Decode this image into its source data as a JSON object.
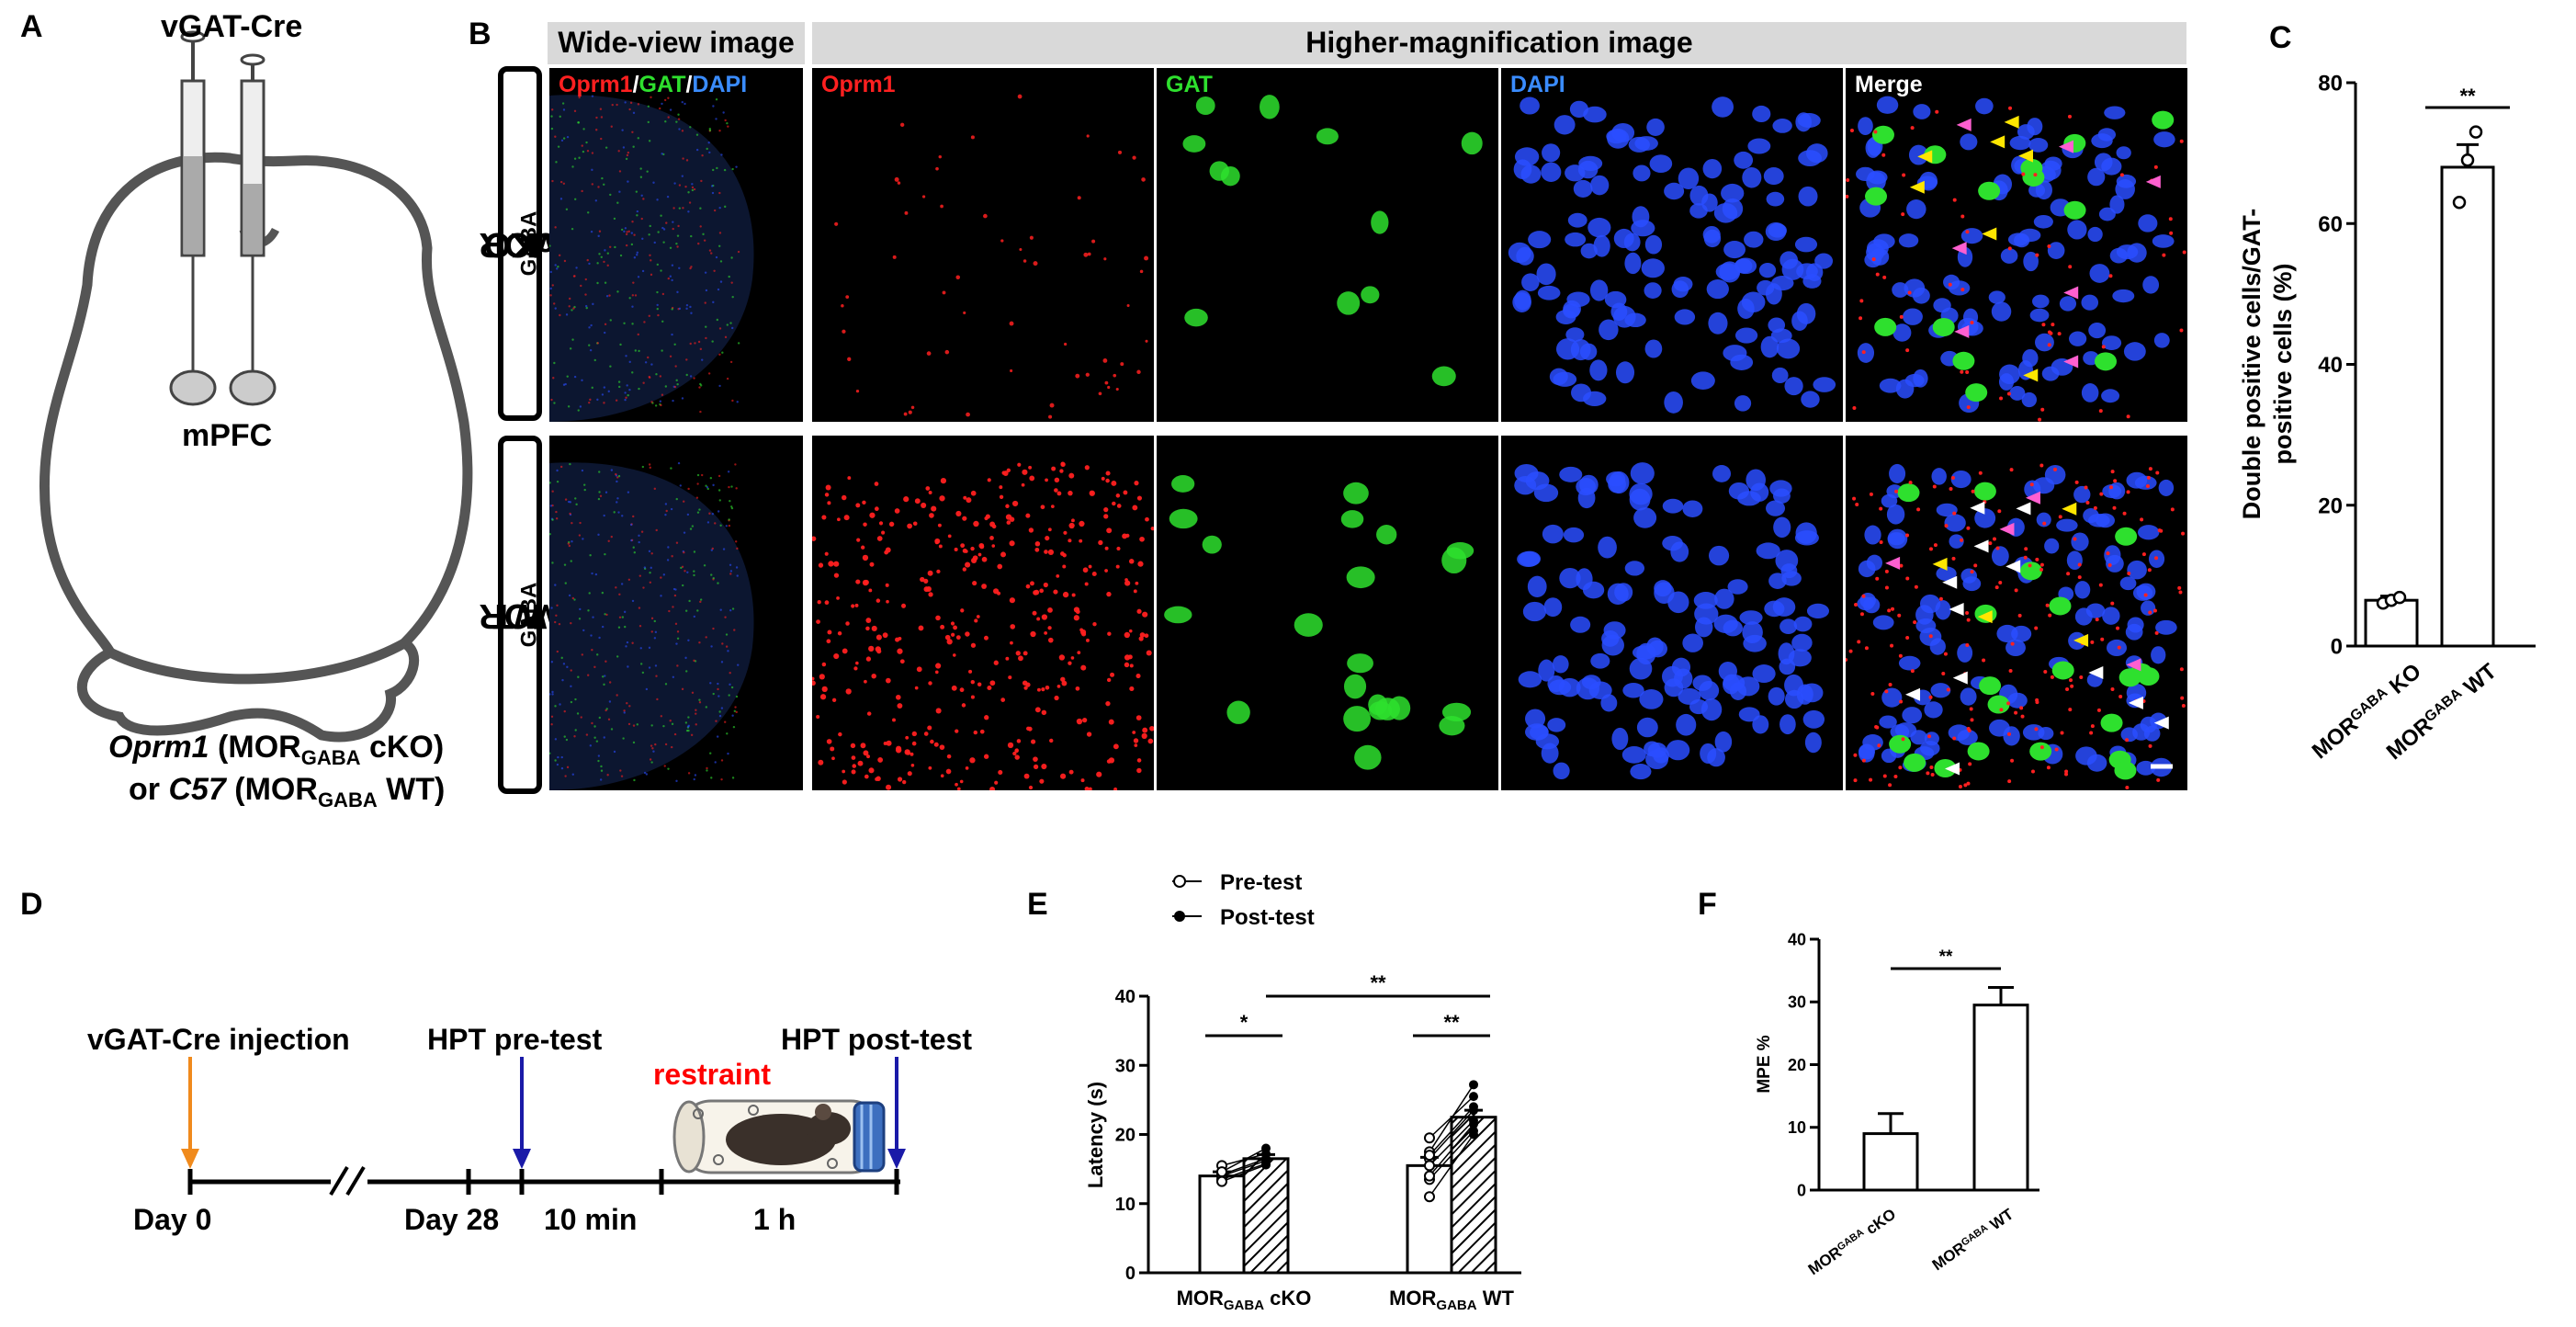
{
  "panels": {
    "A": "A",
    "B": "B",
    "C": "C",
    "D": "D",
    "E": "E",
    "F": "F"
  },
  "panel_a": {
    "virus": "vGAT-Cre",
    "region": "mPFC",
    "caption_line1_gene": "Oprm1",
    "caption_line1_rest_pre": "(MOR",
    "caption_line1_sub": "GABA",
    "caption_line1_rest_post": "cKO)",
    "caption_line2_or": "or",
    "caption_line2_gene": "C57",
    "caption_line2_rest_pre": "(MOR",
    "caption_line2_sub": "GABA",
    "caption_line2_rest_post": "WT)"
  },
  "panel_b": {
    "header_wide": "Wide-view image",
    "header_high": "Higher-magnification image",
    "wide_label_oprm1": "Oprm1",
    "wide_label_slash1": "/",
    "wide_label_gat": "GAT",
    "wide_label_slash2": "/",
    "wide_label_dapi": "DAPI",
    "ch_oprm1": "Oprm1",
    "ch_gat": "GAT",
    "ch_dapi": "DAPI",
    "ch_merge": "Merge",
    "row1_pre": "MOR",
    "row1_sub": "GABA",
    "row1_post": " cKO",
    "row2_pre": "MOR",
    "row2_sub": "GABA",
    "row2_post": " WT",
    "colors": {
      "red": "#ff2020",
      "green": "#2ee02e",
      "blue": "#2a4dff",
      "white": "#ffffff"
    }
  },
  "panel_d": {
    "events": [
      "vGAT-Cre injection",
      "HPT pre-test",
      "HPT post-test"
    ],
    "restraint": "restraint",
    "ticks": [
      "Day 0",
      "Day 28",
      "10 min",
      "1 h"
    ],
    "colors": {
      "injection_arrow": "#f08a1c",
      "test_arrow": "#1a1aa8",
      "restraint": "#ff0000"
    }
  },
  "chart_data": [
    {
      "panel": "C",
      "type": "bar",
      "ylabel_line1": "Double positive cells/GAT-",
      "ylabel_line2": "positive cells (%)",
      "ylim": [
        0,
        80
      ],
      "yticks": [
        0,
        20,
        40,
        60,
        80
      ],
      "categories": [
        {
          "pre": "MOR",
          "sub": "GABA",
          "post": " KO"
        },
        {
          "pre": "MOR",
          "sub": "GABA",
          "post": " WT"
        }
      ],
      "values": [
        6.5,
        68
      ],
      "errors": [
        0.6,
        3.2
      ],
      "points": [
        [
          6.1,
          6.5,
          6.9
        ],
        [
          63,
          69,
          73
        ]
      ],
      "significance": "**"
    },
    {
      "panel": "E",
      "type": "bar",
      "legend": [
        "Pre-test",
        "Post-test"
      ],
      "ylabel": "Latency (s)",
      "ylim": [
        0,
        40
      ],
      "yticks": [
        0,
        10,
        20,
        30,
        40
      ],
      "groups": [
        {
          "pre": "MOR",
          "sub": "GABA",
          "post": " cKO"
        },
        {
          "pre": "MOR",
          "sub": "GABA",
          "post": " WT"
        }
      ],
      "series": [
        {
          "name": "Pre-test",
          "values": [
            14,
            15.5
          ],
          "errors": [
            0.6,
            1.2
          ]
        },
        {
          "name": "Post-test",
          "values": [
            16.5,
            22.5
          ],
          "errors": [
            0.6,
            1.0
          ]
        }
      ],
      "pairs": [
        [
          [
            14,
            16.2
          ],
          [
            13.5,
            15.8
          ],
          [
            15.5,
            17.2
          ],
          [
            14.2,
            16.5
          ],
          [
            13.2,
            15.6
          ],
          [
            14.6,
            18.0
          ]
        ],
        [
          [
            19.5,
            25.5
          ],
          [
            17.5,
            27.2
          ],
          [
            16.5,
            23.5
          ],
          [
            15.5,
            22.0
          ],
          [
            13.5,
            20.5
          ],
          [
            11.0,
            20.0
          ],
          [
            17.0,
            24.0
          ],
          [
            14.0,
            21.5
          ]
        ]
      ],
      "significance": {
        "within_cko": "*",
        "within_wt": "**",
        "between": "**"
      }
    },
    {
      "panel": "F",
      "type": "bar",
      "ylabel": "MPE %",
      "ylim": [
        0,
        40
      ],
      "yticks": [
        0,
        10,
        20,
        30,
        40
      ],
      "categories": [
        {
          "pre": "MOR",
          "sub": "GABA",
          "post": " cKO"
        },
        {
          "pre": "MOR",
          "sub": "GABA",
          "post": " WT"
        }
      ],
      "values": [
        9,
        29.5
      ],
      "errors": [
        3.2,
        2.8
      ],
      "significance": "**"
    }
  ]
}
